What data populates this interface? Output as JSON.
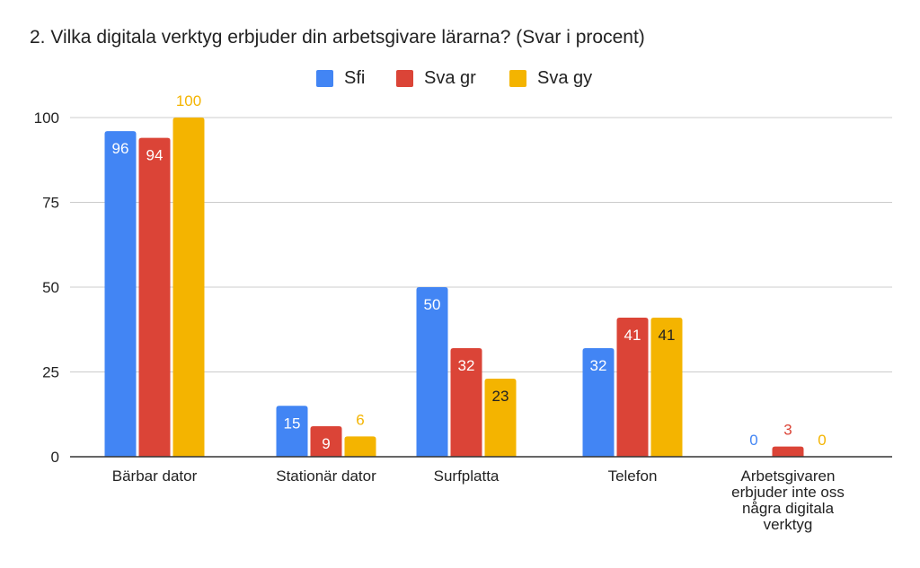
{
  "chart_data": {
    "type": "bar",
    "title": "2. Vilka digitala verktyg erbjuder din arbetsgivare lärarna? (Svar i procent)",
    "categories": [
      [
        "Bärbar dator"
      ],
      [
        "Stationär dator"
      ],
      [
        "Surfplatta"
      ],
      [
        "Telefon"
      ],
      [
        "Arbetsgivaren",
        "erbjuder inte oss",
        "några digitala",
        "verktyg"
      ]
    ],
    "series": [
      {
        "name": "Sfi",
        "color": "#4285f4",
        "values": [
          96,
          15,
          50,
          32,
          0
        ]
      },
      {
        "name": "Sva gr",
        "color": "#db4437",
        "values": [
          94,
          9,
          32,
          41,
          3
        ]
      },
      {
        "name": "Sva gy",
        "color": "#f4b400",
        "values": [
          100,
          6,
          23,
          41,
          0
        ]
      }
    ],
    "ylim": [
      0,
      100
    ],
    "yticks": [
      0,
      25,
      50,
      75,
      100
    ],
    "grid": true,
    "legend_position": "top-center"
  }
}
